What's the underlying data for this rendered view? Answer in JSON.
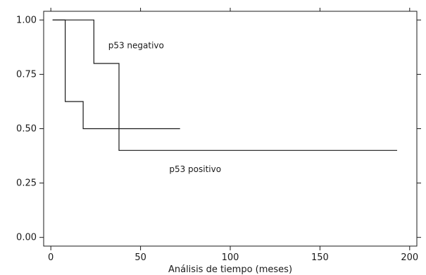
{
  "chart_data": {
    "type": "line",
    "title": "",
    "xlabel": "Análisis de tiempo (meses)",
    "ylabel": "",
    "xlim": [
      -4,
      204
    ],
    "ylim": [
      -0.04,
      1.04
    ],
    "x_ticks": [
      0,
      50,
      100,
      150,
      200
    ],
    "x_tick_labels": [
      "0",
      "50",
      "100",
      "150",
      "200"
    ],
    "y_ticks": [
      0.0,
      0.25,
      0.5,
      0.75,
      1.0
    ],
    "y_tick_labels": [
      "0.00",
      "0.25",
      "0.50",
      "0.75",
      "1.00"
    ],
    "grid": false,
    "step": true,
    "series": [
      {
        "name": "p53 negativo",
        "x": [
          1,
          24,
          24,
          38,
          38,
          193
        ],
        "y": [
          1.0,
          1.0,
          0.8,
          0.8,
          0.4,
          0.4
        ]
      },
      {
        "name": "p53 positivo",
        "x": [
          1,
          8,
          8,
          18,
          18,
          72
        ],
        "y": [
          1.0,
          1.0,
          0.625,
          0.625,
          0.5,
          0.5
        ]
      }
    ],
    "annotations": [
      {
        "text": "p53 negativo",
        "x": 32,
        "y": 0.87
      },
      {
        "text": "p53 positivo",
        "x": 66,
        "y": 0.3
      }
    ]
  }
}
